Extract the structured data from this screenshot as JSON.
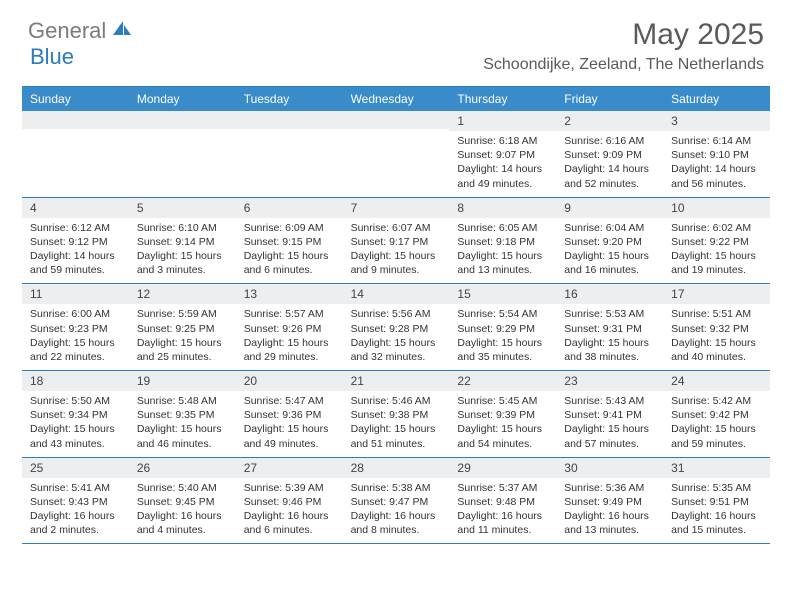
{
  "logo": {
    "gray": "General",
    "blue": "Blue"
  },
  "title": "May 2025",
  "location": "Schoondijke, Zeeland, The Netherlands",
  "colors": {
    "header_bg": "#3a8bc9",
    "border": "#2b7bbd",
    "daynum_bg": "#eceeef",
    "text_gray": "#5a5a5a",
    "logo_blue": "#2b7bbd",
    "logo_gray": "#7a7a7a"
  },
  "day_names": [
    "Sunday",
    "Monday",
    "Tuesday",
    "Wednesday",
    "Thursday",
    "Friday",
    "Saturday"
  ],
  "weeks": [
    [
      {
        "n": "",
        "sr": "",
        "ss": "",
        "dl": ""
      },
      {
        "n": "",
        "sr": "",
        "ss": "",
        "dl": ""
      },
      {
        "n": "",
        "sr": "",
        "ss": "",
        "dl": ""
      },
      {
        "n": "",
        "sr": "",
        "ss": "",
        "dl": ""
      },
      {
        "n": "1",
        "sr": "Sunrise: 6:18 AM",
        "ss": "Sunset: 9:07 PM",
        "dl": "Daylight: 14 hours and 49 minutes."
      },
      {
        "n": "2",
        "sr": "Sunrise: 6:16 AM",
        "ss": "Sunset: 9:09 PM",
        "dl": "Daylight: 14 hours and 52 minutes."
      },
      {
        "n": "3",
        "sr": "Sunrise: 6:14 AM",
        "ss": "Sunset: 9:10 PM",
        "dl": "Daylight: 14 hours and 56 minutes."
      }
    ],
    [
      {
        "n": "4",
        "sr": "Sunrise: 6:12 AM",
        "ss": "Sunset: 9:12 PM",
        "dl": "Daylight: 14 hours and 59 minutes."
      },
      {
        "n": "5",
        "sr": "Sunrise: 6:10 AM",
        "ss": "Sunset: 9:14 PM",
        "dl": "Daylight: 15 hours and 3 minutes."
      },
      {
        "n": "6",
        "sr": "Sunrise: 6:09 AM",
        "ss": "Sunset: 9:15 PM",
        "dl": "Daylight: 15 hours and 6 minutes."
      },
      {
        "n": "7",
        "sr": "Sunrise: 6:07 AM",
        "ss": "Sunset: 9:17 PM",
        "dl": "Daylight: 15 hours and 9 minutes."
      },
      {
        "n": "8",
        "sr": "Sunrise: 6:05 AM",
        "ss": "Sunset: 9:18 PM",
        "dl": "Daylight: 15 hours and 13 minutes."
      },
      {
        "n": "9",
        "sr": "Sunrise: 6:04 AM",
        "ss": "Sunset: 9:20 PM",
        "dl": "Daylight: 15 hours and 16 minutes."
      },
      {
        "n": "10",
        "sr": "Sunrise: 6:02 AM",
        "ss": "Sunset: 9:22 PM",
        "dl": "Daylight: 15 hours and 19 minutes."
      }
    ],
    [
      {
        "n": "11",
        "sr": "Sunrise: 6:00 AM",
        "ss": "Sunset: 9:23 PM",
        "dl": "Daylight: 15 hours and 22 minutes."
      },
      {
        "n": "12",
        "sr": "Sunrise: 5:59 AM",
        "ss": "Sunset: 9:25 PM",
        "dl": "Daylight: 15 hours and 25 minutes."
      },
      {
        "n": "13",
        "sr": "Sunrise: 5:57 AM",
        "ss": "Sunset: 9:26 PM",
        "dl": "Daylight: 15 hours and 29 minutes."
      },
      {
        "n": "14",
        "sr": "Sunrise: 5:56 AM",
        "ss": "Sunset: 9:28 PM",
        "dl": "Daylight: 15 hours and 32 minutes."
      },
      {
        "n": "15",
        "sr": "Sunrise: 5:54 AM",
        "ss": "Sunset: 9:29 PM",
        "dl": "Daylight: 15 hours and 35 minutes."
      },
      {
        "n": "16",
        "sr": "Sunrise: 5:53 AM",
        "ss": "Sunset: 9:31 PM",
        "dl": "Daylight: 15 hours and 38 minutes."
      },
      {
        "n": "17",
        "sr": "Sunrise: 5:51 AM",
        "ss": "Sunset: 9:32 PM",
        "dl": "Daylight: 15 hours and 40 minutes."
      }
    ],
    [
      {
        "n": "18",
        "sr": "Sunrise: 5:50 AM",
        "ss": "Sunset: 9:34 PM",
        "dl": "Daylight: 15 hours and 43 minutes."
      },
      {
        "n": "19",
        "sr": "Sunrise: 5:48 AM",
        "ss": "Sunset: 9:35 PM",
        "dl": "Daylight: 15 hours and 46 minutes."
      },
      {
        "n": "20",
        "sr": "Sunrise: 5:47 AM",
        "ss": "Sunset: 9:36 PM",
        "dl": "Daylight: 15 hours and 49 minutes."
      },
      {
        "n": "21",
        "sr": "Sunrise: 5:46 AM",
        "ss": "Sunset: 9:38 PM",
        "dl": "Daylight: 15 hours and 51 minutes."
      },
      {
        "n": "22",
        "sr": "Sunrise: 5:45 AM",
        "ss": "Sunset: 9:39 PM",
        "dl": "Daylight: 15 hours and 54 minutes."
      },
      {
        "n": "23",
        "sr": "Sunrise: 5:43 AM",
        "ss": "Sunset: 9:41 PM",
        "dl": "Daylight: 15 hours and 57 minutes."
      },
      {
        "n": "24",
        "sr": "Sunrise: 5:42 AM",
        "ss": "Sunset: 9:42 PM",
        "dl": "Daylight: 15 hours and 59 minutes."
      }
    ],
    [
      {
        "n": "25",
        "sr": "Sunrise: 5:41 AM",
        "ss": "Sunset: 9:43 PM",
        "dl": "Daylight: 16 hours and 2 minutes."
      },
      {
        "n": "26",
        "sr": "Sunrise: 5:40 AM",
        "ss": "Sunset: 9:45 PM",
        "dl": "Daylight: 16 hours and 4 minutes."
      },
      {
        "n": "27",
        "sr": "Sunrise: 5:39 AM",
        "ss": "Sunset: 9:46 PM",
        "dl": "Daylight: 16 hours and 6 minutes."
      },
      {
        "n": "28",
        "sr": "Sunrise: 5:38 AM",
        "ss": "Sunset: 9:47 PM",
        "dl": "Daylight: 16 hours and 8 minutes."
      },
      {
        "n": "29",
        "sr": "Sunrise: 5:37 AM",
        "ss": "Sunset: 9:48 PM",
        "dl": "Daylight: 16 hours and 11 minutes."
      },
      {
        "n": "30",
        "sr": "Sunrise: 5:36 AM",
        "ss": "Sunset: 9:49 PM",
        "dl": "Daylight: 16 hours and 13 minutes."
      },
      {
        "n": "31",
        "sr": "Sunrise: 5:35 AM",
        "ss": "Sunset: 9:51 PM",
        "dl": "Daylight: 16 hours and 15 minutes."
      }
    ]
  ]
}
